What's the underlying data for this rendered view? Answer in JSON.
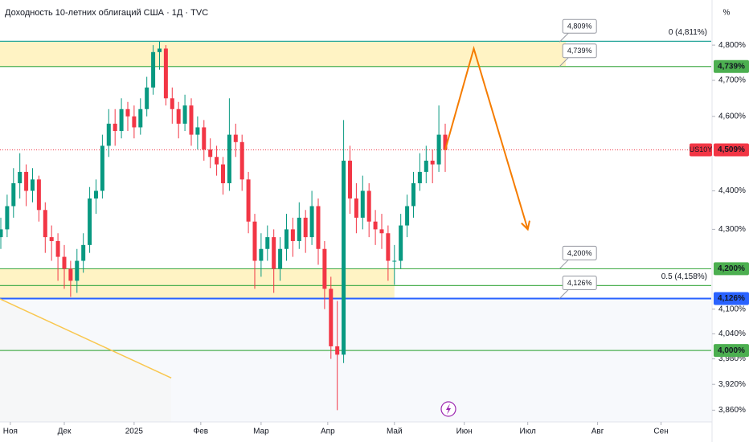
{
  "chart_data": {
    "type": "candlestick",
    "title": "Доходность 10-летних облигаций США · 1Д · TVC",
    "axis_unit": "%",
    "log_scale": true,
    "up_color": "#089981",
    "down_color": "#f23645",
    "xlim": [
      -0.25,
      223.8
    ],
    "xticks": [
      {
        "value": 3,
        "label": "Ноя"
      },
      {
        "value": 20,
        "label": "Дек"
      },
      {
        "value": 42,
        "label": "2025"
      },
      {
        "value": 63,
        "label": "Фев"
      },
      {
        "value": 82,
        "label": "Мар"
      },
      {
        "value": 103,
        "label": "Апр"
      },
      {
        "value": 124,
        "label": "Май"
      },
      {
        "value": 146,
        "label": "Июн"
      },
      {
        "value": 166,
        "label": "Июл"
      },
      {
        "value": 188,
        "label": "Авг"
      },
      {
        "value": 208,
        "label": "Сен"
      }
    ],
    "ylim": [
      3.833,
      4.931
    ],
    "yticks": [
      {
        "value": 4.8,
        "label": "4,800%"
      },
      {
        "value": 4.7,
        "label": "4,700%"
      },
      {
        "value": 4.6,
        "label": "4,600%"
      },
      {
        "value": 4.4,
        "label": "4,400%"
      },
      {
        "value": 4.3,
        "label": "4,300%"
      },
      {
        "value": 4.1,
        "label": "4,100%"
      },
      {
        "value": 4.04,
        "label": "4,040%"
      },
      {
        "value": 3.98,
        "label": "3,980%"
      },
      {
        "value": 3.92,
        "label": "3,920%"
      },
      {
        "value": 3.86,
        "label": "3,860%"
      }
    ],
    "x": [
      0,
      2,
      4,
      6,
      8,
      10,
      12,
      14,
      16,
      18,
      20,
      22,
      24,
      26,
      28,
      30,
      32,
      34,
      36,
      38,
      40,
      42,
      44,
      46,
      48,
      50,
      52,
      54,
      56,
      58,
      60,
      62,
      64,
      66,
      68,
      70,
      72,
      74,
      76,
      78,
      80,
      82,
      84,
      86,
      88,
      90,
      92,
      94,
      96,
      98,
      100,
      102,
      104,
      106,
      108,
      110,
      112,
      114,
      116,
      118,
      120,
      122,
      124,
      126,
      128,
      130,
      132,
      134,
      136,
      138,
      140
    ],
    "open": [
      4.28,
      4.3,
      4.36,
      4.42,
      4.45,
      4.4,
      4.43,
      4.35,
      4.28,
      4.27,
      4.23,
      4.2,
      4.17,
      4.22,
      4.26,
      4.38,
      4.4,
      4.52,
      4.58,
      4.56,
      4.62,
      4.6,
      4.57,
      4.62,
      4.68,
      4.78,
      4.79,
      4.65,
      4.62,
      4.58,
      4.63,
      4.55,
      4.57,
      4.51,
      4.49,
      4.47,
      4.42,
      4.55,
      4.53,
      4.43,
      4.32,
      4.22,
      4.25,
      4.28,
      4.2,
      4.25,
      4.3,
      4.27,
      4.33,
      4.28,
      4.36,
      4.25,
      4.15,
      4.01,
      3.99,
      4.48,
      4.38,
      4.33,
      4.4,
      4.32,
      4.3,
      4.29,
      4.22,
      4.22,
      4.31,
      4.36,
      4.42,
      4.45,
      4.48,
      4.47,
      4.55
    ],
    "high": [
      4.33,
      4.39,
      4.46,
      4.5,
      4.47,
      4.46,
      4.44,
      4.37,
      4.31,
      4.29,
      4.26,
      4.22,
      4.25,
      4.29,
      4.41,
      4.43,
      4.55,
      4.62,
      4.62,
      4.65,
      4.64,
      4.63,
      4.65,
      4.71,
      4.8,
      4.81,
      4.8,
      4.68,
      4.64,
      4.66,
      4.65,
      4.6,
      4.59,
      4.54,
      4.52,
      4.49,
      4.65,
      4.58,
      4.55,
      4.45,
      4.34,
      4.29,
      4.31,
      4.3,
      4.28,
      4.34,
      4.33,
      4.37,
      4.35,
      4.4,
      4.38,
      4.27,
      4.18,
      4.12,
      4.59,
      4.52,
      4.42,
      4.44,
      4.42,
      4.35,
      4.34,
      4.31,
      4.26,
      4.34,
      4.39,
      4.45,
      4.5,
      4.52,
      4.51,
      4.63,
      4.58
    ],
    "low": [
      4.25,
      4.28,
      4.33,
      4.38,
      4.36,
      4.37,
      4.32,
      4.24,
      4.22,
      4.17,
      4.15,
      4.13,
      4.14,
      4.19,
      4.24,
      4.34,
      4.38,
      4.49,
      4.52,
      4.54,
      4.56,
      4.54,
      4.55,
      4.6,
      4.66,
      4.73,
      4.63,
      4.58,
      4.54,
      4.56,
      4.52,
      4.51,
      4.48,
      4.46,
      4.44,
      4.39,
      4.4,
      4.49,
      4.4,
      4.29,
      4.15,
      4.18,
      4.22,
      4.14,
      4.17,
      4.22,
      4.23,
      4.25,
      4.24,
      4.26,
      4.21,
      4.1,
      3.98,
      3.86,
      3.97,
      4.34,
      4.29,
      4.3,
      4.28,
      4.26,
      4.25,
      4.17,
      4.16,
      4.2,
      4.28,
      4.33,
      4.4,
      4.42,
      4.42,
      4.45,
      4.45
    ],
    "close": [
      4.3,
      4.36,
      4.42,
      4.45,
      4.4,
      4.43,
      4.35,
      4.28,
      4.27,
      4.23,
      4.2,
      4.17,
      4.22,
      4.26,
      4.38,
      4.4,
      4.52,
      4.58,
      4.56,
      4.62,
      4.6,
      4.57,
      4.62,
      4.68,
      4.78,
      4.79,
      4.65,
      4.62,
      4.58,
      4.63,
      4.55,
      4.57,
      4.51,
      4.49,
      4.47,
      4.42,
      4.55,
      4.53,
      4.43,
      4.32,
      4.22,
      4.25,
      4.28,
      4.2,
      4.25,
      4.3,
      4.27,
      4.33,
      4.28,
      4.36,
      4.25,
      4.15,
      4.01,
      3.99,
      4.48,
      4.38,
      4.33,
      4.4,
      4.32,
      4.3,
      4.29,
      4.22,
      4.22,
      4.31,
      4.36,
      4.42,
      4.45,
      4.48,
      4.47,
      4.55,
      4.509
    ],
    "zones": [
      {
        "from": 4.739,
        "to": 4.811,
        "x_end": 178,
        "color": "#fff3c4"
      },
      {
        "from": 4.126,
        "to": 4.2,
        "x_end": 124,
        "color": "#fff3c4"
      }
    ],
    "levels": [
      {
        "value": 4.811,
        "color": "#26a69a",
        "label": "0 (4,811%)"
      },
      {
        "value": 4.739,
        "color": "#4caf50"
      },
      {
        "value": 4.2,
        "color": "#4caf50"
      },
      {
        "value": 4.158,
        "color": "#4caf50",
        "label": "0.5 (4,158%)"
      },
      {
        "value": 4.126,
        "color": "#2962ff"
      },
      {
        "value": 4.0,
        "color": "#4caf50"
      }
    ],
    "callouts": [
      {
        "x": 176,
        "value": 4.809,
        "label": "4,809%"
      },
      {
        "x": 176,
        "value": 4.739,
        "label": "4,739%"
      },
      {
        "x": 176,
        "value": 4.2,
        "label": "4,200%"
      },
      {
        "x": 176,
        "value": 4.126,
        "label": "4,126%"
      }
    ],
    "price_labels": [
      {
        "value": 4.739,
        "label": "4,739%",
        "color": "#4caf50"
      },
      {
        "value": 4.509,
        "label": "4,509%",
        "color": "#f23645",
        "name": "US10Y"
      },
      {
        "value": 4.2,
        "label": "4,200%",
        "color": "#4caf50"
      },
      {
        "value": 4.126,
        "label": "4,126%",
        "color": "#2962ff"
      },
      {
        "value": 4.0,
        "label": "4,000%",
        "color": "#4caf50"
      }
    ],
    "projection": {
      "x": [
        140,
        149,
        166
      ],
      "values": [
        4.509,
        4.79,
        4.3
      ],
      "color": "#f57c00"
    },
    "trendline": {
      "x": [
        -0.25,
        53.7
      ],
      "values": [
        4.125,
        3.935
      ],
      "color": "#f9c74f"
    }
  }
}
